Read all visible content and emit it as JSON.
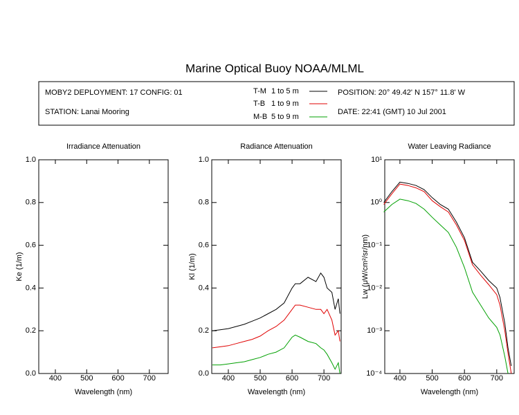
{
  "header": {
    "title": "Marine Optical Buoy NOAA/MLML",
    "deployment": "MOBY2 DEPLOYMENT: 17 CONFIG: 01",
    "station": "STATION: Lanai Mooring",
    "position": "POSITION: 20° 49.42' N   157° 11.8' W",
    "date": "DATE: 22:41 (GMT) 10 Jul 2001",
    "legend_depths": [
      "1 to 5  m",
      "1 to 9  m",
      "5 to 9  m"
    ]
  },
  "chart_data": [
    {
      "type": "line",
      "title": "Irradiance Attenuation",
      "xlabel": "Wavelength (nm)",
      "ylabel": "Ke  (1/m)",
      "xlim": [
        347,
        760
      ],
      "xticks": [
        400,
        500,
        600,
        700
      ],
      "ylim": [
        0,
        1
      ],
      "yticks": [
        {
          "value": 0,
          "label": "0.0"
        },
        0.2,
        0.4,
        0.6,
        0.8,
        {
          "value": 1,
          "label": "1.0"
        }
      ],
      "x": [],
      "series": []
    },
    {
      "type": "line",
      "title": "Radiance Attenuation",
      "xlabel": "Wavelength (nm)",
      "ylabel": "Kl  (1/m)",
      "xlim": [
        348,
        754
      ],
      "xticks": [
        400,
        500,
        600,
        700
      ],
      "ylim": [
        0,
        1
      ],
      "yticks": [
        {
          "value": 0,
          "label": "0.0"
        },
        0.2,
        0.4,
        0.6,
        0.8,
        {
          "value": 1,
          "label": "1.0"
        }
      ],
      "x": [
        350,
        375,
        400,
        425,
        450,
        475,
        500,
        525,
        550,
        575,
        600,
        610,
        625,
        650,
        675,
        690,
        700,
        710,
        725,
        735,
        745,
        750
      ],
      "series": [
        {
          "name": "T-M",
          "color": "#000000",
          "values": [
            0.2,
            0.205,
            0.21,
            0.22,
            0.23,
            0.245,
            0.26,
            0.28,
            0.3,
            0.33,
            0.4,
            0.42,
            0.42,
            0.45,
            0.43,
            0.47,
            0.45,
            0.4,
            0.38,
            0.3,
            0.35,
            0.28
          ]
        },
        {
          "name": "T-B",
          "color": "#e00000",
          "values": [
            0.12,
            0.125,
            0.13,
            0.14,
            0.15,
            0.16,
            0.175,
            0.2,
            0.22,
            0.25,
            0.3,
            0.32,
            0.32,
            0.31,
            0.3,
            0.3,
            0.28,
            0.3,
            0.25,
            0.18,
            0.2,
            0.15
          ]
        },
        {
          "name": "M-B",
          "color": "#00a000",
          "values": [
            0.04,
            0.04,
            0.045,
            0.05,
            0.055,
            0.065,
            0.075,
            0.09,
            0.1,
            0.12,
            0.17,
            0.18,
            0.17,
            0.15,
            0.14,
            0.12,
            0.11,
            0.09,
            0.05,
            0.02,
            0.05,
            0.0
          ]
        }
      ]
    },
    {
      "type": "line",
      "title": "Water Leaving Radiance",
      "xlabel": "Wavelength (nm)",
      "ylabel": "Lw  (μW/cm²/sr/nm)",
      "log_y": true,
      "xlim": [
        353,
        754
      ],
      "xticks": [
        400,
        500,
        600,
        700
      ],
      "ylim": [
        0.0001,
        10
      ],
      "yticks": [
        {
          "value": 10,
          "label": "10¹"
        },
        {
          "value": 1,
          "label": "10⁰"
        },
        {
          "value": 0.1,
          "label": "10⁻¹"
        },
        {
          "value": 0.01,
          "label": "10⁻²"
        },
        {
          "value": 0.001,
          "label": "10⁻³"
        },
        {
          "value": 0.0001,
          "label": "10⁻⁴"
        }
      ],
      "x": [
        350,
        375,
        400,
        425,
        450,
        475,
        500,
        525,
        550,
        575,
        600,
        625,
        650,
        675,
        700,
        710,
        725,
        735,
        745
      ],
      "series": [
        {
          "name": "T-M",
          "color": "#000000",
          "values": [
            1,
            1.8,
            3,
            2.8,
            2.5,
            2.0,
            1.3,
            0.9,
            0.7,
            0.35,
            0.15,
            0.04,
            0.025,
            0.015,
            0.01,
            0.006,
            0.0015,
            0.0004,
            0.00015
          ]
        },
        {
          "name": "T-B",
          "color": "#e00000",
          "values": [
            0.9,
            1.6,
            2.7,
            2.5,
            2.2,
            1.8,
            1.1,
            0.8,
            0.6,
            0.3,
            0.13,
            0.035,
            0.02,
            0.012,
            0.007,
            0.004,
            0.001,
            0.0003,
            0.0001
          ]
        },
        {
          "name": "M-B",
          "color": "#00a000",
          "values": [
            0.6,
            0.9,
            1.2,
            1.1,
            0.95,
            0.7,
            0.45,
            0.3,
            0.2,
            0.09,
            0.03,
            0.008,
            0.004,
            0.002,
            0.0012,
            0.0008,
            0.00025,
            0.0001,
            null
          ]
        }
      ]
    }
  ]
}
